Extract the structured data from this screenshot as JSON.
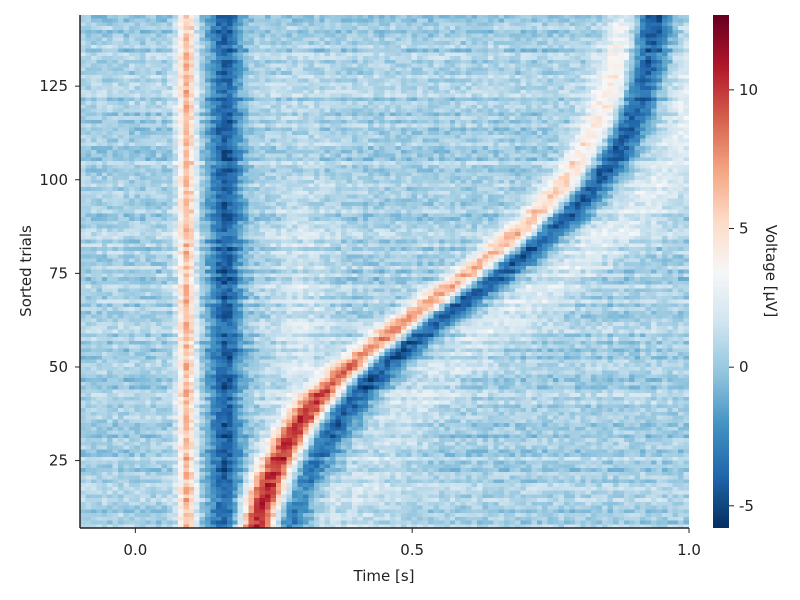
{
  "chart_data": {
    "type": "heatmap",
    "title": "",
    "xlabel": "Time [s]",
    "ylabel": "Sorted trials",
    "xlim": [
      -0.1,
      1.0
    ],
    "ylim": [
      7,
      144
    ],
    "xticks": [
      0.0,
      0.5,
      1.0
    ],
    "xtick_labels": [
      "0.0",
      "0.5",
      "1.0"
    ],
    "yticks": [
      25,
      50,
      75,
      100,
      125
    ],
    "ytick_labels": [
      "25",
      "50",
      "75",
      "100",
      "125"
    ],
    "n_trials": 144,
    "colorbar": {
      "label": "Voltage [µV]",
      "colormap": "RdBu_r",
      "vmin": -5.8,
      "vmax": 12.7,
      "ticks": [
        -5,
        0,
        5,
        10
      ],
      "tick_labels": [
        "-5",
        "0",
        "5",
        "10"
      ]
    },
    "components": [
      {
        "name": "early positive band",
        "latency_s": 0.09,
        "peak_uV": 6
      },
      {
        "name": "early negative band",
        "latency_s": 0.16,
        "peak_uV": -4.5
      },
      {
        "name": "trial-dependent negative deflection",
        "latency_start_s": 0.25,
        "latency_end_s": 0.95,
        "peak_uV": -5.5
      },
      {
        "name": "trial-dependent positive deflection",
        "latency_start_s": 0.22,
        "latency_end_s": 0.98,
        "peak_uV": 12
      }
    ]
  },
  "colors": {
    "negative": "#053061",
    "neutral": "#f7f7f7",
    "positive": "#67001f"
  }
}
